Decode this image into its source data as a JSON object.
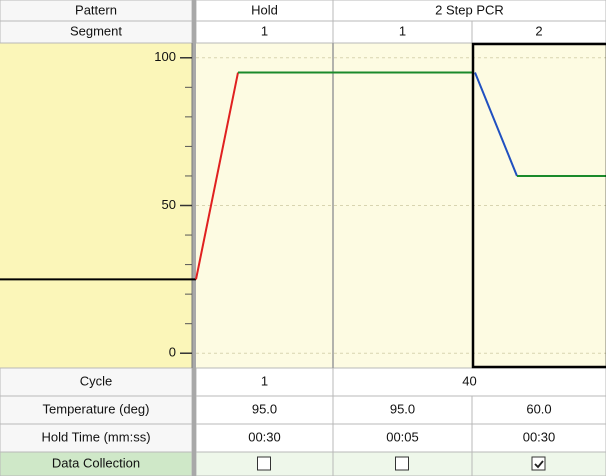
{
  "header": {
    "pattern_label": "Pattern",
    "segment_label": "Segment"
  },
  "patterns": [
    {
      "name": "Hold",
      "segments": [
        "1"
      ]
    },
    {
      "name": "2 Step PCR",
      "segments": [
        "1",
        "2"
      ]
    }
  ],
  "chart": {
    "ylim": [
      -5,
      105
    ],
    "yticks": [
      0,
      50,
      100
    ],
    "minor_yticks": [
      10,
      20,
      30,
      40,
      60,
      70,
      80,
      90
    ],
    "start_temperature": 25,
    "selected_segment": 2
  },
  "rows": {
    "cycle": {
      "label": "Cycle",
      "values": [
        "1",
        "40"
      ]
    },
    "temperature": {
      "label": "Temperature (deg)",
      "values": [
        "95.0",
        "95.0",
        "60.0"
      ]
    },
    "hold_time": {
      "label": "Hold Time (mm:ss)",
      "values": [
        "00:30",
        "00:05",
        "00:30"
      ]
    },
    "data_collection": {
      "label": "Data Collection",
      "values": [
        false,
        false,
        true
      ]
    }
  }
}
